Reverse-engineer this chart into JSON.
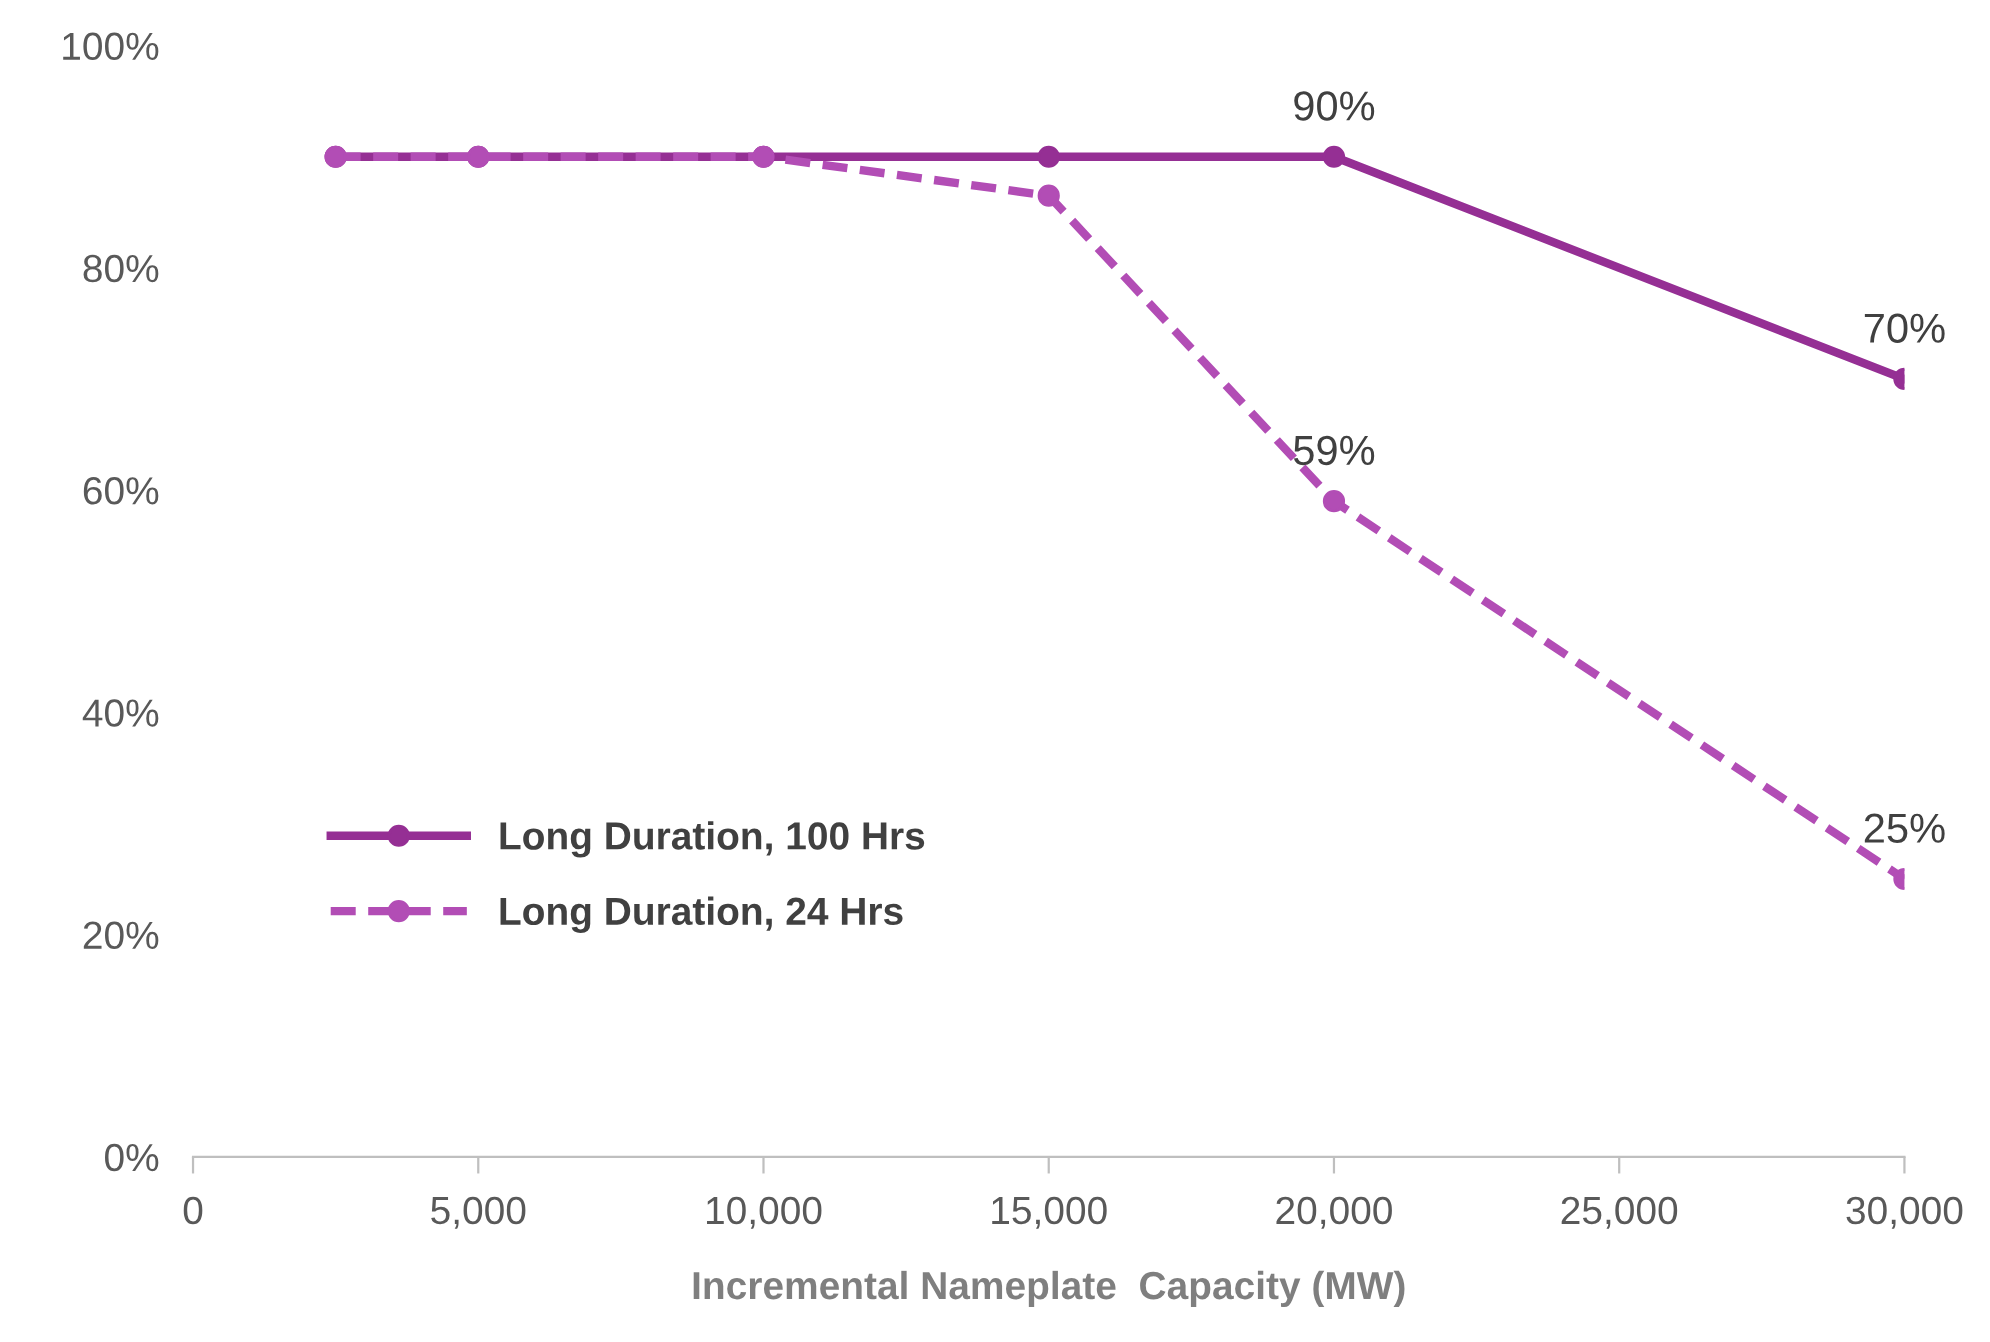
{
  "chart_data": {
    "type": "line",
    "xlabel": "Incremental Nameplate  Capacity (MW)",
    "x": [
      2500,
      5000,
      10000,
      15000,
      20000,
      30000
    ],
    "series": [
      {
        "name": "Long Duration, 100 Hrs",
        "color": "#952f94",
        "values": [
          90,
          90,
          90,
          90,
          90,
          70
        ],
        "line_style": "solid",
        "value_labels": [
          null,
          null,
          null,
          null,
          "90%",
          "70%"
        ]
      },
      {
        "name": "Long Duration, 24 Hrs",
        "color": "#b24db5",
        "values": [
          90,
          90,
          90,
          86.5,
          59,
          25
        ],
        "line_style": "dashed",
        "value_labels": [
          null,
          null,
          null,
          null,
          "59%",
          "25%"
        ]
      }
    ],
    "xlim": [
      0,
      30000
    ],
    "xticks": [
      {
        "value": 0,
        "label": "0"
      },
      {
        "value": 5000,
        "label": "5,000"
      },
      {
        "value": 10000,
        "label": "10,000"
      },
      {
        "value": 15000,
        "label": "15,000"
      },
      {
        "value": 20000,
        "label": "20,000"
      },
      {
        "value": 25000,
        "label": "25,000"
      },
      {
        "value": 30000,
        "label": "30,000"
      }
    ],
    "ylim": [
      0,
      100
    ],
    "yticks": [
      {
        "value": 0,
        "label": "0%"
      },
      {
        "value": 20,
        "label": "20%"
      },
      {
        "value": 40,
        "label": "40%"
      },
      {
        "value": 60,
        "label": "60%"
      },
      {
        "value": 80,
        "label": "80%"
      },
      {
        "value": 100,
        "label": "100%"
      }
    ],
    "grid": false,
    "legend": "bottom left",
    "marker": "circle"
  }
}
